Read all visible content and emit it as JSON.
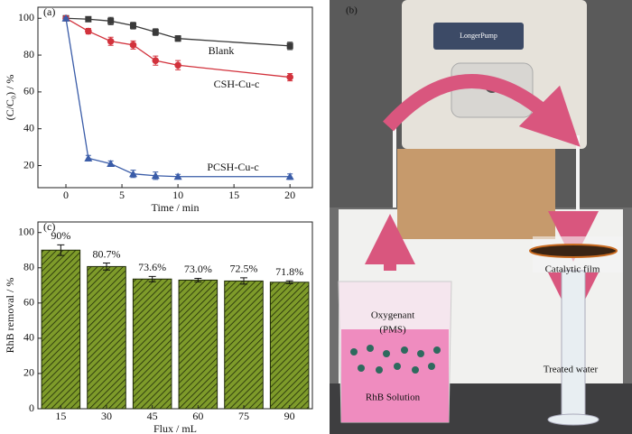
{
  "chart_data": [
    {
      "type": "line",
      "panel_label": "(a)",
      "x_label": "Time / min",
      "y_label": "(C/C₀) / %",
      "xlim": [
        -2.5,
        22
      ],
      "xticks": [
        0,
        5,
        10,
        15,
        20
      ],
      "ylim": [
        8,
        106
      ],
      "yticks": [
        20,
        40,
        60,
        80,
        100
      ],
      "x": [
        0,
        2,
        4,
        6,
        8,
        10,
        20
      ],
      "series": [
        {
          "name": "Blank",
          "color": "#3a3a3a",
          "marker": "square",
          "values": [
            100,
            99.5,
            98.5,
            96,
            92.5,
            89,
            85
          ],
          "errors": [
            0.5,
            1.2,
            2,
            1.8,
            1.8,
            1.5,
            2
          ]
        },
        {
          "name": "CSH-Cu-c",
          "color": "#d2323c",
          "marker": "circle",
          "values": [
            100,
            93,
            87.5,
            85.5,
            77,
            74.5,
            68
          ],
          "errors": [
            0.5,
            1.5,
            2.2,
            2.2,
            2.5,
            2.5,
            2
          ]
        },
        {
          "name": "PCSH-Cu-c",
          "color": "#3a5ca8",
          "marker": "triangle",
          "values": [
            100,
            24,
            21,
            15.5,
            14.5,
            14,
            14
          ],
          "errors": [
            0.5,
            1.5,
            1.5,
            2,
            2,
            1.2,
            1.5
          ]
        }
      ]
    },
    {
      "type": "bar",
      "panel_label": "(c)",
      "x_label": "Flux / mL",
      "y_label": "RhB removal / %",
      "categories": [
        "15",
        "30",
        "45",
        "60",
        "75",
        "90"
      ],
      "values": [
        90,
        80.7,
        73.6,
        73.0,
        72.5,
        71.8
      ],
      "value_labels": [
        "90%",
        "80.7%",
        "73.6%",
        "73.0%",
        "72.5%",
        "71.8%"
      ],
      "errors": [
        3,
        2,
        1.5,
        1,
        1.8,
        0.8
      ],
      "color": "#7e9b2a",
      "ylim": [
        0,
        106
      ],
      "yticks": [
        0,
        20,
        40,
        60,
        80,
        100
      ]
    }
  ],
  "photo": {
    "label": "(b)",
    "pump_brand": "LongerPump",
    "oxygenant": "Oxygenant",
    "oxygenant_formula": "(PMS)",
    "solution": "RhB Solution",
    "film": "Catalytic film",
    "output": "Treated water"
  }
}
